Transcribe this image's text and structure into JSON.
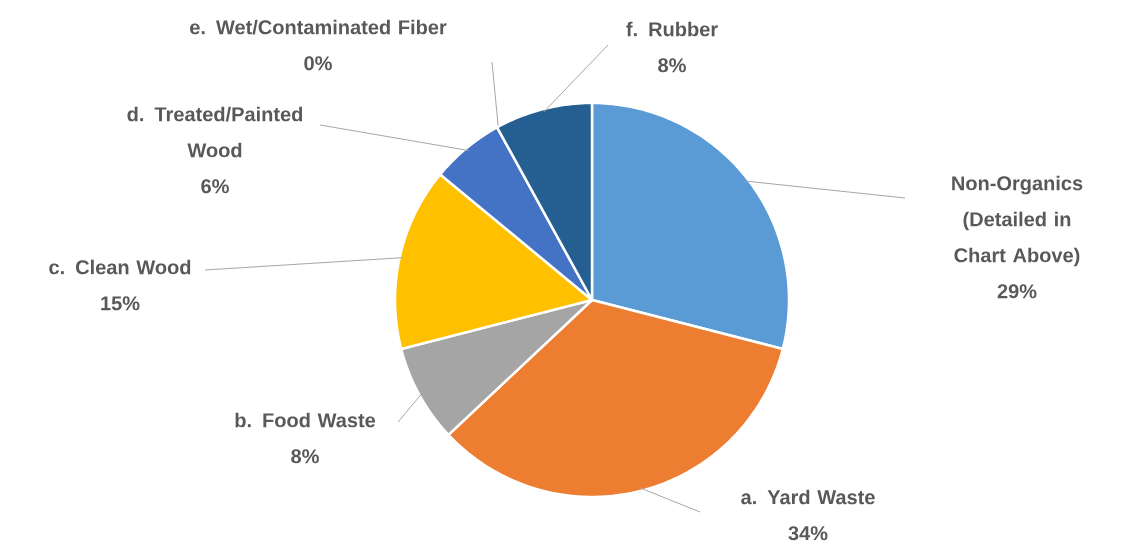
{
  "chart_data": {
    "type": "pie",
    "categories": [
      "Non-Organics (Detailed in Chart Above)",
      "a. Yard Waste",
      "b. Food Waste",
      "c. Clean Wood",
      "d. Treated/Painted Wood",
      "e. Wet/Contaminated Fiber",
      "f. Rubber"
    ],
    "values": [
      29,
      34,
      8,
      15,
      6,
      0,
      8
    ],
    "value_labels": [
      "29%",
      "34%",
      "8%",
      "15%",
      "6%",
      "0%",
      "8%"
    ],
    "colors": [
      "#5b9bd5",
      "#ed7d31",
      "#a5a5a5",
      "#ffc000",
      "#4472c4",
      "#70ad47",
      "#255e91"
    ],
    "legend": false
  }
}
